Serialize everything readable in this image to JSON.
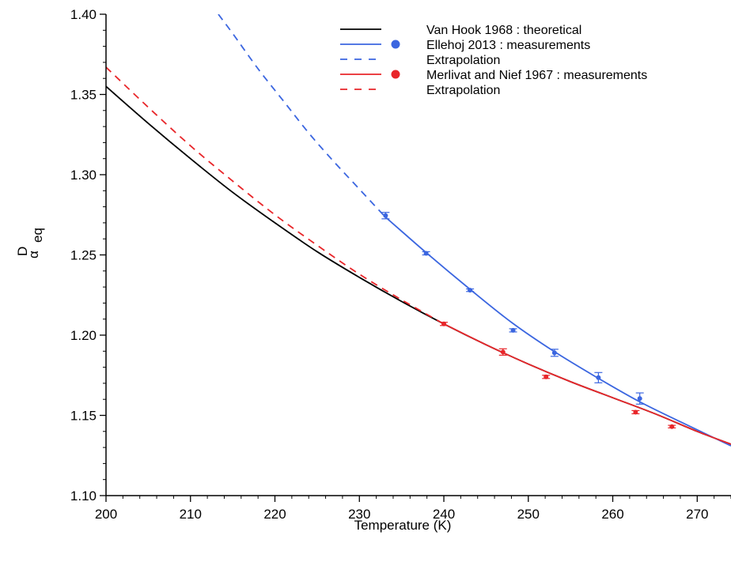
{
  "chart_data": {
    "type": "line",
    "xlabel": "Temperature (K)",
    "ylabel": {
      "main": "α",
      "sup": "D",
      "sub": "eq"
    },
    "xlim": [
      200,
      274
    ],
    "ylim": [
      1.1,
      1.4
    ],
    "xticks": [
      200,
      210,
      220,
      230,
      240,
      250,
      260,
      270
    ],
    "yticks": [
      1.1,
      1.15,
      1.2,
      1.25,
      1.3,
      1.35,
      1.4
    ],
    "ytick_labels": [
      "1.10",
      "1.15",
      "1.20",
      "1.25",
      "1.30",
      "1.35",
      "1.40"
    ],
    "grid": false,
    "legend_position": "top-right",
    "colors": {
      "black": "#000000",
      "blue": "#3b66e0",
      "red": "#e8262a"
    },
    "legend": [
      {
        "label": "Van Hook 1968 : theoretical",
        "color": "#000000",
        "line": "solid",
        "marker": false
      },
      {
        "label": "Ellehoj 2013 : measurements",
        "color": "#3b66e0",
        "line": "solid",
        "marker": true
      },
      {
        "label": "Extrapolation",
        "color": "#3b66e0",
        "line": "dashed",
        "marker": false
      },
      {
        "label": "Merlivat and Nief 1967 : measurements",
        "color": "#e8262a",
        "line": "solid",
        "marker": true
      },
      {
        "label": "Extrapolation",
        "color": "#e8262a",
        "line": "dashed",
        "marker": false
      }
    ],
    "series": [
      {
        "name": "Van Hook 1968 : theoretical",
        "color": "#000000",
        "style": "solid",
        "x": [
          200,
          205,
          210,
          215,
          220,
          225,
          230,
          235,
          240,
          245,
          250,
          255,
          260,
          265,
          270,
          274
        ],
        "y": [
          1.355,
          1.332,
          1.31,
          1.289,
          1.27,
          1.252,
          1.236,
          1.221,
          1.207,
          1.194,
          1.182,
          1.171,
          1.161,
          1.151,
          1.14,
          1.132
        ]
      },
      {
        "name": "Ellehoj 2013 : fit",
        "color": "#3b66e0",
        "style": "solid",
        "x": [
          233,
          238,
          243,
          248,
          253,
          258,
          263,
          268,
          274
        ],
        "y": [
          1.274,
          1.251,
          1.229,
          1.208,
          1.19,
          1.174,
          1.159,
          1.146,
          1.131
        ]
      },
      {
        "name": "Ellehoj 2013 : extrapolation",
        "color": "#3b66e0",
        "style": "dashed",
        "x": [
          213.3,
          215,
          218,
          221,
          224,
          227,
          230,
          233
        ],
        "y": [
          1.4,
          1.388,
          1.366,
          1.346,
          1.326,
          1.308,
          1.291,
          1.274
        ]
      },
      {
        "name": "Merlivat and Nief 1967 : fit",
        "color": "#e8262a",
        "style": "solid",
        "x": [
          240,
          245,
          250,
          255,
          260,
          265,
          270,
          274
        ],
        "y": [
          1.207,
          1.194,
          1.182,
          1.171,
          1.161,
          1.151,
          1.14,
          1.132
        ]
      },
      {
        "name": "Merlivat and Nief 1967 : extrapolation",
        "color": "#e8262a",
        "style": "dashed",
        "x": [
          200,
          205,
          210,
          215,
          220,
          225,
          230,
          235,
          240
        ],
        "y": [
          1.367,
          1.342,
          1.318,
          1.296,
          1.275,
          1.256,
          1.238,
          1.222,
          1.207
        ]
      }
    ],
    "points": [
      {
        "name": "Ellehoj 2013 : measurements",
        "color": "#3b66e0",
        "x": [
          233.1,
          237.9,
          243.1,
          248.2,
          253.1,
          258.3,
          263.2
        ],
        "y": [
          1.2745,
          1.251,
          1.228,
          1.203,
          1.189,
          1.1735,
          1.1605
        ],
        "err": [
          0.002,
          0.001,
          0.0008,
          0.001,
          0.0022,
          0.0032,
          0.0035
        ]
      },
      {
        "name": "Merlivat and Nief 1967 : measurements",
        "color": "#e8262a",
        "x": [
          240.0,
          247.0,
          252.1,
          262.7,
          267.0
        ],
        "y": [
          1.207,
          1.1895,
          1.174,
          1.152,
          1.143
        ],
        "err": [
          0.001,
          0.002,
          0.001,
          0.001,
          0.0008
        ]
      }
    ]
  }
}
